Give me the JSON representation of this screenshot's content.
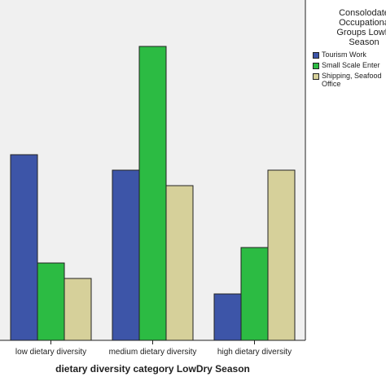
{
  "chart_data": {
    "type": "bar",
    "categories": [
      "low dietary diversity",
      "medium dietary diversity",
      "high dietary diversity"
    ],
    "series": [
      {
        "name": "Tourism Work",
        "color": "#3d55a8",
        "values": [
          12,
          11,
          3
        ]
      },
      {
        "name": "Small Scale Enter",
        "color": "#2cbb43",
        "values": [
          5,
          19,
          6
        ]
      },
      {
        "name": "Shipping, Seafood Office",
        "color": "#d6d09a",
        "values": [
          4,
          10,
          11
        ]
      }
    ],
    "title": "",
    "xlabel": "dietary diversity category LowDry Season",
    "ylabel": "",
    "ylim": [
      0,
      22
    ],
    "grid": false,
    "legend_position": "right",
    "legend_title": [
      "Consolodate",
      "Occupationa",
      "Groups LowD",
      "Season"
    ],
    "colors": {
      "plot_background": "#f0f0f0",
      "bar_outline": "#222222"
    }
  }
}
